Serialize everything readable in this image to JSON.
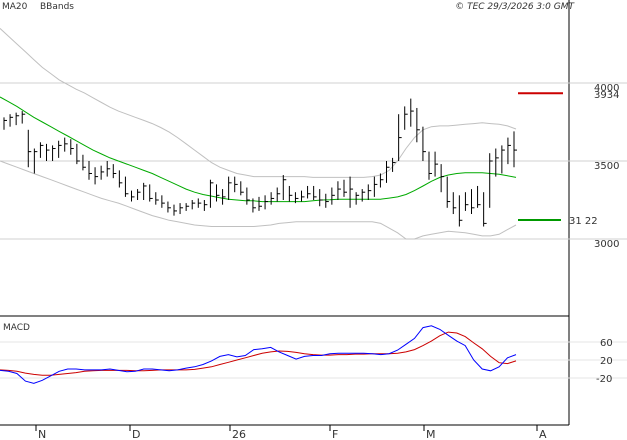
{
  "header": {
    "indicator_ma": "MA20",
    "indicator_bb": "BBands",
    "copyright": "© TEC 29/3/2026 3:0 GMT"
  },
  "price_axis": {
    "tick_labels": [
      "4000",
      "3500",
      "3000"
    ],
    "tick_values": [
      4000,
      3500,
      3000
    ]
  },
  "macd_axis": {
    "title": "MACD",
    "tick_labels": [
      "60",
      "20",
      "-20"
    ],
    "tick_values": [
      60,
      20,
      -20
    ]
  },
  "x_axis": {
    "tick_labels": [
      "N",
      "D",
      "26",
      "F",
      "M",
      "A"
    ]
  },
  "levels": {
    "resistance": {
      "label": "3934",
      "value": 3934,
      "color": "#cc0000"
    },
    "support": {
      "label": "31 22",
      "value": 3122,
      "color": "#009900"
    }
  },
  "colors": {
    "bars": "#000000",
    "ma20": "#00aa00",
    "bbands": "#c0c0c0",
    "macd": "#0000ff",
    "signal": "#cc0000",
    "grid": "#d0d0d0",
    "frame": "#000000"
  },
  "chart_data": {
    "type": "line",
    "x_tick_labels": [
      "N",
      "D",
      "26",
      "F",
      "M",
      "A"
    ],
    "price_range": [
      2600,
      4500
    ],
    "macd_range": [
      -60,
      110
    ],
    "levels": [
      3934,
      3122
    ],
    "series": [
      {
        "name": "MA20",
        "values": [
          3910,
          3880,
          3850,
          3815,
          3780,
          3750,
          3720,
          3690,
          3660,
          3630,
          3600,
          3570,
          3545,
          3520,
          3500,
          3480,
          3460,
          3440,
          3420,
          3395,
          3370,
          3345,
          3320,
          3300,
          3285,
          3275,
          3265,
          3255,
          3250,
          3245,
          3245,
          3240,
          3240,
          3240,
          3240,
          3240,
          3240,
          3245,
          3250,
          3252,
          3255,
          3255,
          3255,
          3255,
          3255,
          3255,
          3262,
          3270,
          3285,
          3310,
          3340,
          3370,
          3395,
          3410,
          3420,
          3425,
          3425,
          3425,
          3420,
          3415,
          3405,
          3395
        ]
      },
      {
        "name": "BBands",
        "values": [
          4350,
          4300,
          4250,
          4200,
          4150,
          4100,
          4060,
          4020,
          3990,
          3960,
          3935,
          3905,
          3875,
          3845,
          3820,
          3800,
          3780,
          3760,
          3740,
          3715,
          3685,
          3650,
          3610,
          3570,
          3530,
          3490,
          3460,
          3440,
          3420,
          3410,
          3400,
          3400,
          3400,
          3400,
          3400,
          3400,
          3400,
          3395,
          3395,
          3395,
          3395,
          3395,
          3395,
          3395,
          3400,
          3410,
          3440,
          3500,
          3580,
          3650,
          3700,
          3720,
          3725,
          3725,
          3730,
          3735,
          3740,
          3745,
          3740,
          3735,
          3725,
          3705
        ]
      },
      {
        "name": "BBands",
        "values": [
          3500,
          3480,
          3460,
          3440,
          3420,
          3400,
          3380,
          3360,
          3340,
          3320,
          3300,
          3280,
          3260,
          3245,
          3230,
          3210,
          3190,
          3170,
          3150,
          3135,
          3120,
          3110,
          3100,
          3090,
          3085,
          3080,
          3080,
          3080,
          3080,
          3080,
          3080,
          3085,
          3090,
          3100,
          3105,
          3110,
          3110,
          3110,
          3110,
          3110,
          3110,
          3110,
          3110,
          3110,
          3110,
          3100,
          3070,
          3040,
          3000,
          3000,
          3020,
          3030,
          3040,
          3050,
          3045,
          3040,
          3030,
          3020,
          3020,
          3030,
          3060,
          3090
        ]
      },
      {
        "name": "MACD",
        "values": [
          -3,
          -5,
          -10,
          -27,
          -32,
          -25,
          -15,
          -5,
          0,
          0,
          -2,
          -2,
          -2,
          0,
          -3,
          -6,
          -5,
          0,
          0,
          -2,
          -4,
          -2,
          2,
          5,
          10,
          18,
          28,
          32,
          27,
          30,
          43,
          45,
          48,
          38,
          30,
          22,
          28,
          30,
          30,
          34,
          35,
          35,
          35,
          35,
          34,
          32,
          34,
          42,
          55,
          68,
          92,
          96,
          88,
          75,
          62,
          52,
          20,
          0,
          -4,
          5,
          25,
          32
        ]
      },
      {
        "name": "Signal",
        "values": [
          -2,
          -3,
          -5,
          -9,
          -12,
          -14,
          -14,
          -12,
          -10,
          -8,
          -5,
          -4,
          -3,
          -3,
          -3,
          -3,
          -4,
          -4,
          -3,
          -2,
          -2,
          -2,
          -2,
          -1,
          2,
          5,
          10,
          15,
          20,
          25,
          30,
          35,
          38,
          40,
          39,
          37,
          34,
          32,
          31,
          31,
          32,
          32,
          33,
          33,
          34,
          34,
          34,
          35,
          38,
          43,
          52,
          62,
          74,
          82,
          80,
          72,
          58,
          45,
          28,
          14,
          12,
          18
        ]
      }
    ],
    "ohlc": [
      [
        3780,
        3700,
        3760
      ],
      [
        3800,
        3720,
        3780
      ],
      [
        3810,
        3730,
        3790
      ],
      [
        3820,
        3740,
        3800
      ],
      [
        3700,
        3460,
        3560
      ],
      [
        3580,
        3420,
        3560
      ],
      [
        3620,
        3520,
        3600
      ],
      [
        3610,
        3500,
        3570
      ],
      [
        3600,
        3500,
        3580
      ],
      [
        3630,
        3520,
        3600
      ],
      [
        3650,
        3560,
        3610
      ],
      [
        3640,
        3540,
        3580
      ],
      [
        3610,
        3480,
        3500
      ],
      [
        3540,
        3440,
        3460
      ],
      [
        3500,
        3380,
        3420
      ],
      [
        3460,
        3350,
        3400
      ],
      [
        3470,
        3380,
        3430
      ],
      [
        3500,
        3400,
        3450
      ],
      [
        3480,
        3390,
        3420
      ],
      [
        3440,
        3330,
        3360
      ],
      [
        3400,
        3270,
        3290
      ],
      [
        3310,
        3240,
        3270
      ],
      [
        3320,
        3250,
        3300
      ],
      [
        3360,
        3250,
        3340
      ],
      [
        3350,
        3240,
        3260
      ],
      [
        3300,
        3220,
        3250
      ],
      [
        3280,
        3200,
        3230
      ],
      [
        3240,
        3170,
        3200
      ],
      [
        3220,
        3150,
        3180
      ],
      [
        3230,
        3160,
        3200
      ],
      [
        3230,
        3180,
        3210
      ],
      [
        3250,
        3190,
        3230
      ],
      [
        3260,
        3200,
        3230
      ],
      [
        3250,
        3180,
        3220
      ],
      [
        3380,
        3200,
        3360
      ],
      [
        3350,
        3240,
        3280
      ],
      [
        3320,
        3220,
        3270
      ],
      [
        3400,
        3250,
        3360
      ],
      [
        3400,
        3300,
        3350
      ],
      [
        3370,
        3280,
        3300
      ],
      [
        3330,
        3220,
        3250
      ],
      [
        3260,
        3170,
        3200
      ],
      [
        3270,
        3180,
        3210
      ],
      [
        3280,
        3190,
        3240
      ],
      [
        3300,
        3220,
        3260
      ],
      [
        3330,
        3240,
        3290
      ],
      [
        3410,
        3250,
        3380
      ],
      [
        3340,
        3240,
        3280
      ],
      [
        3300,
        3230,
        3260
      ],
      [
        3310,
        3240,
        3270
      ],
      [
        3340,
        3260,
        3290
      ],
      [
        3340,
        3250,
        3270
      ],
      [
        3320,
        3210,
        3250
      ],
      [
        3290,
        3200,
        3240
      ],
      [
        3330,
        3220,
        3280
      ],
      [
        3370,
        3250,
        3320
      ],
      [
        3380,
        3270,
        3300
      ],
      [
        3400,
        3200,
        3320
      ],
      [
        3300,
        3220,
        3280
      ],
      [
        3320,
        3240,
        3300
      ],
      [
        3350,
        3250,
        3310
      ],
      [
        3400,
        3270,
        3350
      ],
      [
        3420,
        3330,
        3380
      ],
      [
        3500,
        3360,
        3460
      ],
      [
        3520,
        3430,
        3490
      ],
      [
        3800,
        3500,
        3650
      ],
      [
        3850,
        3700,
        3800
      ],
      [
        3900,
        3720,
        3820
      ],
      [
        3840,
        3620,
        3700
      ],
      [
        3720,
        3500,
        3560
      ],
      [
        3560,
        3380,
        3420
      ],
      [
        3560,
        3400,
        3480
      ],
      [
        3480,
        3300,
        3400
      ],
      [
        3400,
        3200,
        3240
      ],
      [
        3300,
        3160,
        3200
      ],
      [
        3280,
        3080,
        3120
      ],
      [
        3300,
        3180,
        3220
      ],
      [
        3320,
        3160,
        3200
      ],
      [
        3340,
        3200,
        3220
      ],
      [
        3300,
        3080,
        3100
      ],
      [
        3550,
        3200,
        3500
      ],
      [
        3580,
        3400,
        3520
      ],
      [
        3600,
        3420,
        3570
      ],
      [
        3650,
        3480,
        3600
      ],
      [
        3690,
        3460,
        3570
      ]
    ]
  }
}
